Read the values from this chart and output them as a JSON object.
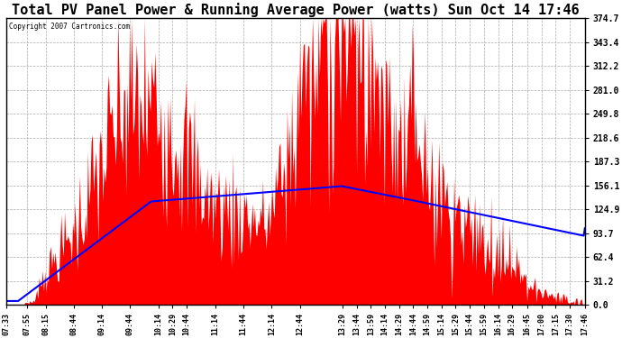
{
  "title": "Total PV Panel Power & Running Average Power (watts) Sun Oct 14 17:46",
  "copyright": "Copyright 2007 Cartronics.com",
  "yticks": [
    0.0,
    31.2,
    62.4,
    93.7,
    124.9,
    156.1,
    187.3,
    218.6,
    249.8,
    281.0,
    312.2,
    343.4,
    374.7
  ],
  "ymax": 374.7,
  "ymin": 0.0,
  "bar_color": "red",
  "avg_color": "blue",
  "bg_color": "white",
  "grid_color": "#aaaaaa",
  "title_fontsize": 11,
  "xtick_labels": [
    "07:33",
    "07:55",
    "08:15",
    "08:44",
    "09:14",
    "09:44",
    "10:14",
    "10:29",
    "10:44",
    "11:14",
    "11:44",
    "12:14",
    "12:44",
    "13:29",
    "13:44",
    "13:59",
    "14:14",
    "14:29",
    "14:44",
    "14:59",
    "15:14",
    "15:29",
    "15:44",
    "15:59",
    "16:14",
    "16:29",
    "16:45",
    "17:00",
    "17:15",
    "17:30",
    "17:46"
  ]
}
